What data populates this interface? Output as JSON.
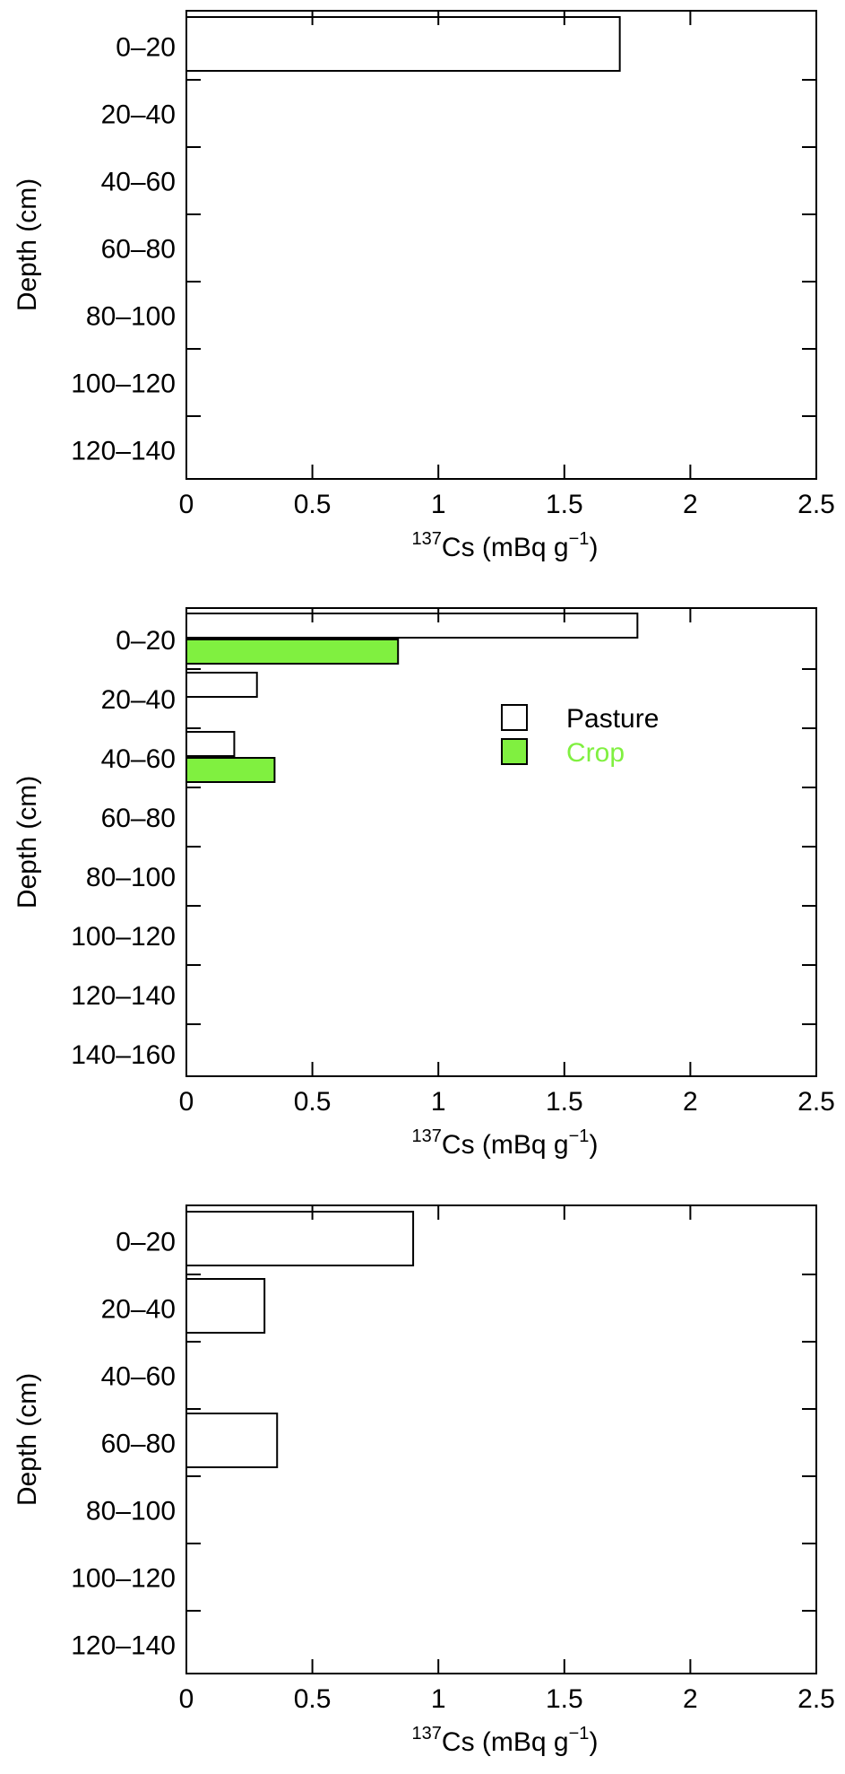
{
  "chart_data": [
    {
      "type": "bar",
      "orientation": "horizontal",
      "categories": [
        "0–20",
        "20–40",
        "40–60",
        "60–80",
        "80–100",
        "100–120",
        "120–140"
      ],
      "series": [
        {
          "name": "",
          "values": [
            1.72,
            0,
            0,
            0,
            0,
            0,
            0
          ],
          "color": "#ffffff"
        }
      ],
      "xlabel": {
        "pre": "",
        "sup": "137",
        "mid": "Cs (mBq g",
        "sup2": "−1",
        "post": ")"
      },
      "ylabel": "Depth (cm)",
      "xlim": [
        0,
        2.5
      ],
      "xticks": [
        "0",
        "0.5",
        "1",
        "1.5",
        "2",
        "2.5"
      ],
      "legend": null,
      "grid": false
    },
    {
      "type": "bar",
      "orientation": "horizontal",
      "categories": [
        "0–20",
        "20–40",
        "40–60",
        "60–80",
        "80–100",
        "100–120",
        "120–140",
        "140–160"
      ],
      "series": [
        {
          "name": "Pasture",
          "values": [
            1.79,
            0.28,
            0.19,
            0,
            0,
            0,
            0,
            0
          ],
          "color": "#ffffff"
        },
        {
          "name": "Crop",
          "values": [
            0.84,
            0,
            0.35,
            0,
            0,
            0,
            0,
            0
          ],
          "color": "#80f040"
        }
      ],
      "xlabel": {
        "pre": "",
        "sup": "137",
        "mid": "Cs (mBq g",
        "sup2": "−1",
        "post": ")"
      },
      "ylabel": "Depth (cm)",
      "xlim": [
        0,
        2.5
      ],
      "xticks": [
        "0",
        "0.5",
        "1",
        "1.5",
        "2",
        "2.5"
      ],
      "legend": {
        "placement": "upper-right",
        "entries": [
          {
            "label": "Pasture",
            "color": "#ffffff",
            "text_color": "#000000"
          },
          {
            "label": "Crop",
            "color": "#80f040",
            "text_color": "#80f040"
          }
        ]
      },
      "grid": false
    },
    {
      "type": "bar",
      "orientation": "horizontal",
      "categories": [
        "0–20",
        "20–40",
        "40–60",
        "60–80",
        "80–100",
        "100–120",
        "120–140"
      ],
      "series": [
        {
          "name": "",
          "values": [
            0.9,
            0.31,
            0,
            0.36,
            0,
            0,
            0
          ],
          "color": "#ffffff"
        }
      ],
      "xlabel": {
        "pre": "",
        "sup": "137",
        "mid": "Cs (mBq g",
        "sup2": "−1",
        "post": ")"
      },
      "ylabel": "Depth (cm)",
      "xlim": [
        0,
        2.5
      ],
      "xticks": [
        "0",
        "0.5",
        "1",
        "1.5",
        "2",
        "2.5"
      ],
      "legend": null,
      "grid": false
    }
  ]
}
